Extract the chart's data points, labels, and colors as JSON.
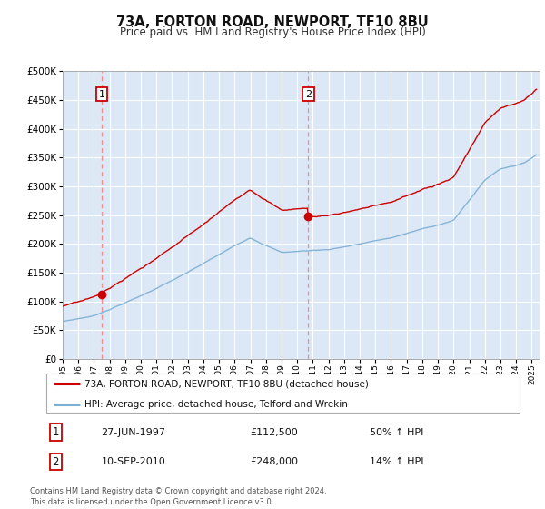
{
  "title": "73A, FORTON ROAD, NEWPORT, TF10 8BU",
  "subtitle": "Price paid vs. HM Land Registry's House Price Index (HPI)",
  "ylim": [
    0,
    500000
  ],
  "yticks": [
    0,
    50000,
    100000,
    150000,
    200000,
    250000,
    300000,
    350000,
    400000,
    450000,
    500000
  ],
  "sale1_date": 1997.49,
  "sale1_price": 112500,
  "sale1_label": "1",
  "sale2_date": 2010.71,
  "sale2_price": 248000,
  "sale2_label": "2",
  "red_line_color": "#cc0000",
  "blue_line_color": "#7bafd4",
  "background_color": "#dce8f5",
  "grid_color": "#ffffff",
  "legend_entry1": "73A, FORTON ROAD, NEWPORT, TF10 8BU (detached house)",
  "legend_entry2": "HPI: Average price, detached house, Telford and Wrekin",
  "table_row1": [
    "1",
    "27-JUN-1997",
    "£112,500",
    "50% ↑ HPI"
  ],
  "table_row2": [
    "2",
    "10-SEP-2010",
    "£248,000",
    "14% ↑ HPI"
  ],
  "footer": "Contains HM Land Registry data © Crown copyright and database right 2024.\nThis data is licensed under the Open Government Licence v3.0.",
  "xmin": 1995,
  "xmax": 2025.5
}
